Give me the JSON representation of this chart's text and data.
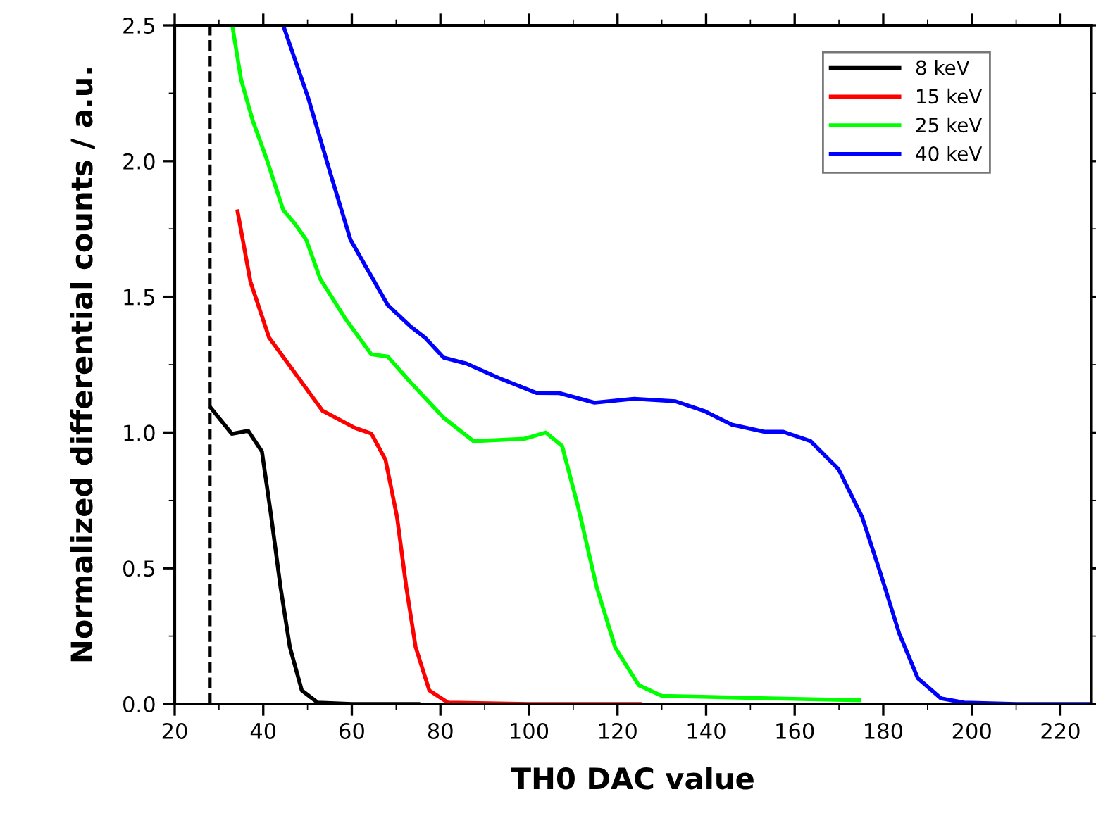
{
  "chart_data": {
    "type": "line",
    "xlabel": "TH0 DAC value",
    "ylabel": "Normalized differential counts / a.u.",
    "xlim": [
      20,
      227
    ],
    "ylim": [
      0,
      2.5
    ],
    "xticks": [
      20,
      40,
      60,
      80,
      100,
      120,
      140,
      160,
      180,
      200,
      220
    ],
    "yticks": [
      {
        "value": 0,
        "label": "0.0"
      },
      {
        "value": 0.5,
        "label": "0.5"
      },
      {
        "value": 1,
        "label": "1.0"
      },
      {
        "value": 1.5,
        "label": "1.5"
      },
      {
        "value": 2,
        "label": "2.0"
      },
      {
        "value": 2.5,
        "label": "2.5"
      }
    ],
    "grid": false,
    "legend": "top right",
    "marker": "none",
    "line_style": "solid",
    "ref_lines": [
      {
        "axis": "x",
        "value": 28,
        "label": null,
        "color": "#000000",
        "line_style": "dashed"
      }
    ],
    "series": [
      {
        "name": "8 keV",
        "color": "#000000",
        "x": [
          28.2,
          32.9,
          36.6,
          39.7,
          41.8,
          43.9,
          46,
          48.7,
          52.3,
          60,
          75
        ],
        "values": [
          1.09,
          0.995,
          1.006,
          0.93,
          0.69,
          0.43,
          0.21,
          0.05,
          0.005,
          0.0,
          0.0
        ]
      },
      {
        "name": "15 keV",
        "color": "#ff0000",
        "x": [
          34.2,
          37.1,
          41.3,
          46,
          53.4,
          60.7,
          64.4,
          67.6,
          70.2,
          72.3,
          74.4,
          77.5,
          81.7,
          100,
          125
        ],
        "values": [
          1.815,
          1.556,
          1.35,
          1.245,
          1.08,
          1.017,
          0.996,
          0.9,
          0.69,
          0.43,
          0.21,
          0.05,
          0.005,
          0.0,
          0.0
        ]
      },
      {
        "name": "25 keV",
        "color": "#00ff00",
        "x": [
          33,
          35,
          37.6,
          40.8,
          44.5,
          47.1,
          49.7,
          52.9,
          58.6,
          64.4,
          68.1,
          73.3,
          80.7,
          87.5,
          99,
          103.8,
          107.5,
          111.1,
          115.3,
          119.5,
          124.8,
          130,
          154.2,
          174.6
        ],
        "values": [
          2.5,
          2.3,
          2.15,
          2.006,
          1.82,
          1.77,
          1.71,
          1.565,
          1.418,
          1.288,
          1.28,
          1.184,
          1.055,
          0.968,
          0.977,
          1.0,
          0.95,
          0.726,
          0.43,
          0.207,
          0.069,
          0.03,
          0.021,
          0.014
        ]
      },
      {
        "name": "40 keV",
        "color": "#0000ff",
        "x": [
          44.5,
          50.2,
          55.5,
          59.7,
          63.9,
          68.1,
          73.3,
          76.5,
          80.7,
          85.9,
          93.3,
          101.7,
          106.9,
          114.8,
          123.7,
          133.1,
          139.5,
          145.8,
          153.1,
          157.3,
          163.6,
          169.9,
          175.2,
          179.4,
          183.6,
          187.8,
          193,
          198.3,
          210,
          227
        ],
        "values": [
          2.5,
          2.23,
          1.936,
          1.71,
          1.59,
          1.47,
          1.39,
          1.35,
          1.276,
          1.254,
          1.2,
          1.146,
          1.145,
          1.11,
          1.124,
          1.115,
          1.08,
          1.029,
          1.003,
          1.003,
          0.968,
          0.865,
          0.69,
          0.48,
          0.26,
          0.095,
          0.021,
          0.005,
          0.0,
          0.0
        ]
      }
    ]
  }
}
